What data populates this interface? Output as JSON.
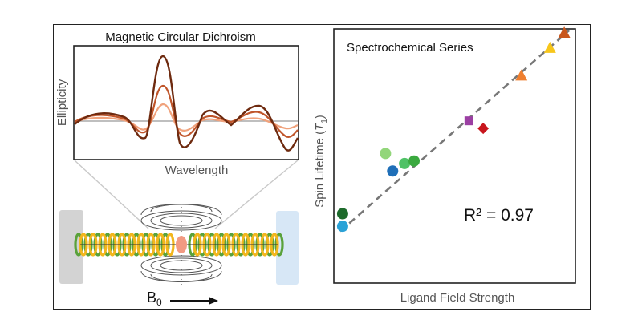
{
  "mcd": {
    "title": "Magnetic Circular Dichroism",
    "ylabel": "Ellipticity",
    "xlabel": "Wavelength",
    "colors": [
      "#f0a27c",
      "#c0552a",
      "#6e2a0f"
    ],
    "baseline_color": "#aaaaaa"
  },
  "field": {
    "label_main": "B",
    "label_sub": "0",
    "helix_colors": [
      "#5aa23a",
      "#f2b61d"
    ],
    "left_block_color": "#d3d3d3",
    "right_block_color": "#d7e7f6",
    "center_spin_color": "#f29a82"
  },
  "chart_data": {
    "type": "scatter",
    "title": "Spectrochemical Series",
    "xlabel": "Ligand Field Strength",
    "ylabel_main": "Spin Lifetime (",
    "ylabel_italic": "T",
    "ylabel_sub": "1",
    "ylabel_end": ")",
    "annotation": "R² = 0.97",
    "xlim": [
      0,
      1
    ],
    "ylim": [
      0,
      1
    ],
    "fit_line": {
      "x": [
        0.02,
        0.98
      ],
      "y": [
        0.2,
        1.0
      ],
      "style": "dashed",
      "color": "#777777"
    },
    "points": [
      {
        "x": 0.03,
        "y": 0.22,
        "marker": "circle",
        "color": "#2aa2d7"
      },
      {
        "x": 0.03,
        "y": 0.27,
        "marker": "circle",
        "color": "#1e6b2c"
      },
      {
        "x": 0.24,
        "y": 0.44,
        "marker": "circle",
        "color": "#1f6fb8"
      },
      {
        "x": 0.21,
        "y": 0.51,
        "marker": "circle",
        "color": "#92d67a"
      },
      {
        "x": 0.29,
        "y": 0.47,
        "marker": "circle",
        "color": "#4fc266"
      },
      {
        "x": 0.33,
        "y": 0.48,
        "marker": "circle",
        "color": "#3aa93f"
      },
      {
        "x": 0.56,
        "y": 0.64,
        "marker": "square",
        "color": "#9b3fa3"
      },
      {
        "x": 0.62,
        "y": 0.61,
        "marker": "diamond",
        "color": "#c8161d"
      },
      {
        "x": 0.78,
        "y": 0.82,
        "marker": "triangle",
        "color": "#ef7f2f"
      },
      {
        "x": 0.9,
        "y": 0.93,
        "marker": "triangle",
        "color": "#f7c61b"
      },
      {
        "x": 0.96,
        "y": 0.99,
        "marker": "triangle",
        "color": "#c8561c"
      }
    ]
  }
}
